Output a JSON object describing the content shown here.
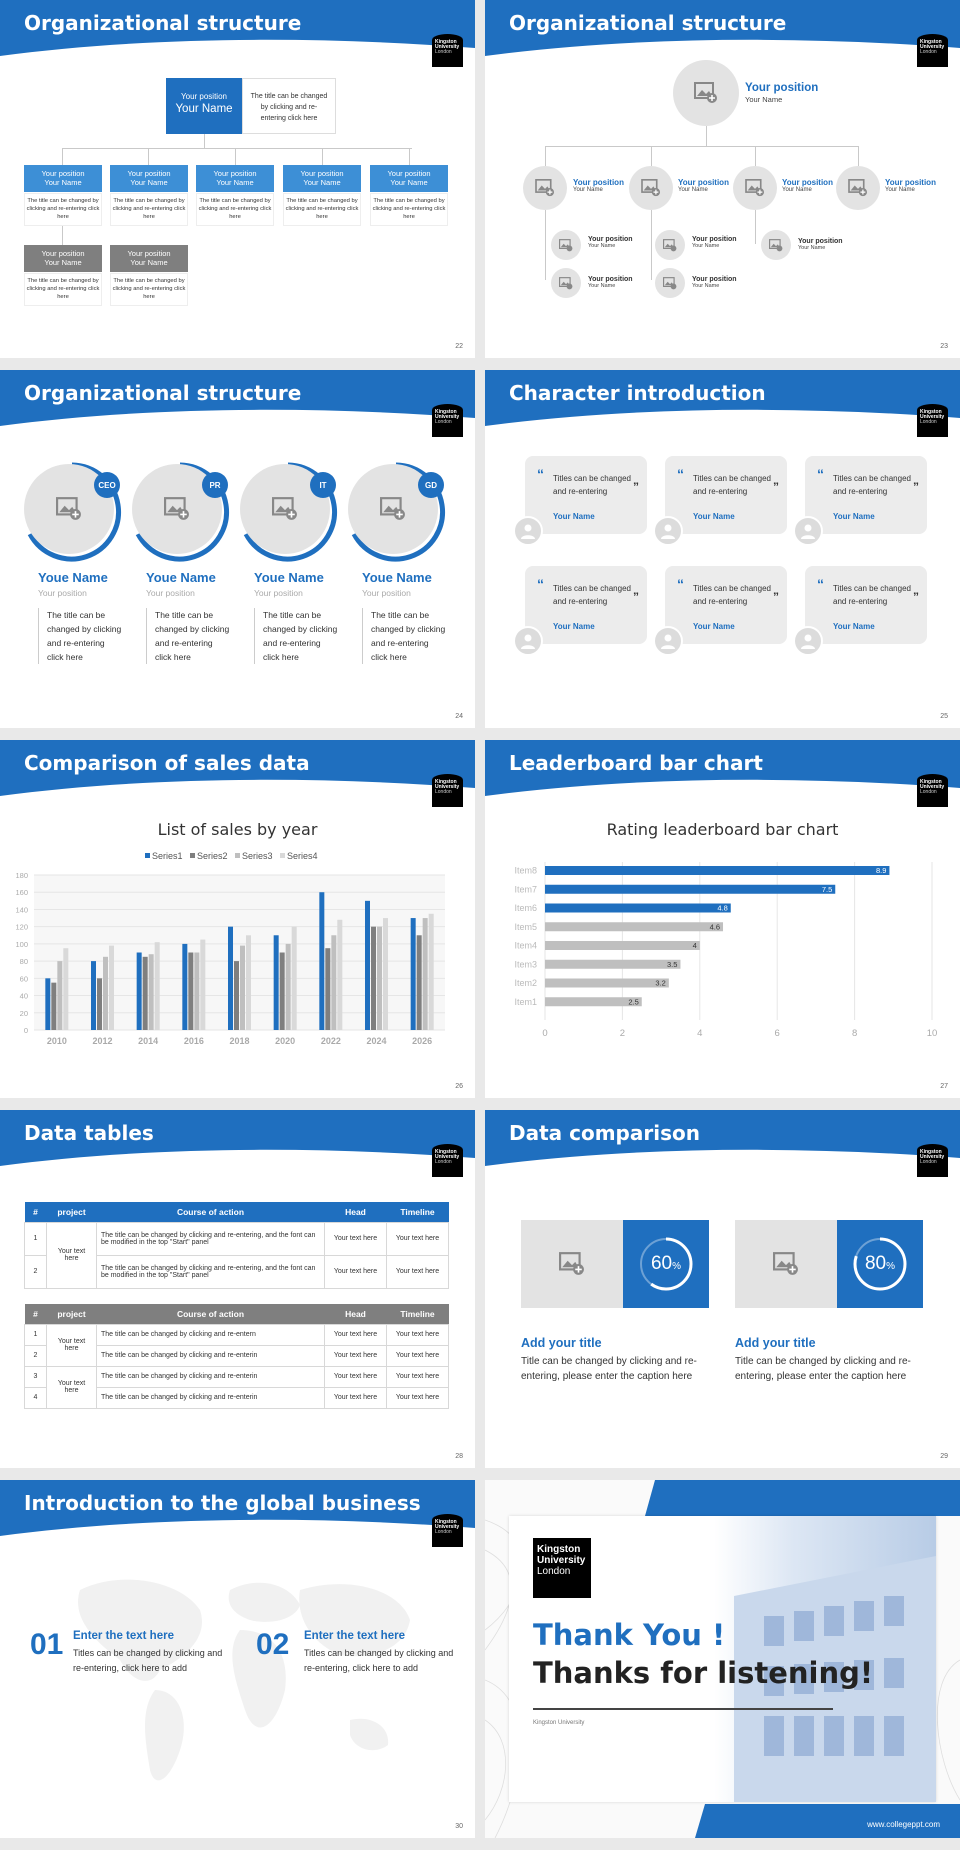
{
  "colors": {
    "blue": "#1f6fbf",
    "light_blue": "#3d8fd6",
    "grey": "#7f7f7f"
  },
  "logo": {
    "line1": "Kingston",
    "line2": "University",
    "line3": "London"
  },
  "slide1": {
    "title": "Organizational structure",
    "page": "22",
    "top": {
      "position": "Your position",
      "name": "Your Name",
      "desc": "The title can be changed by clicking and re-entering click here"
    },
    "boxes": [
      {
        "position": "Your position",
        "name": "Your Name",
        "desc": "The title can be changed by clicking and re-entering click here"
      },
      {
        "position": "Your position",
        "name": "Your Name",
        "desc": "The title can be changed by clicking and re-entering click here"
      },
      {
        "position": "Your position",
        "name": "Your Name",
        "desc": "The title can be changed by clicking and re-entering click here"
      },
      {
        "position": "Your position",
        "name": "Your Name",
        "desc": "The title can be changed by clicking and re-entering click here"
      },
      {
        "position": "Your position",
        "name": "Your Name",
        "desc": "The title can be changed by clicking and re-entering click here"
      },
      {
        "position": "Your position",
        "name": "Your Name",
        "desc": "The title can be changed by clicking and re-entering click here"
      },
      {
        "position": "Your position",
        "name": "Your Name",
        "desc": "The title can be changed by clicking and re-entering click here"
      }
    ]
  },
  "slide2": {
    "title": "Organizational structure",
    "page": "23",
    "top": {
      "position": "Your position",
      "name": "Your Name"
    },
    "mid": [
      {
        "position": "Your position",
        "name": "Your Name"
      },
      {
        "position": "Your position",
        "name": "Your Name"
      },
      {
        "position": "Your position",
        "name": "Your Name"
      },
      {
        "position": "Your position",
        "name": "Your Name"
      }
    ],
    "sub": [
      {
        "position": "Your position",
        "name": "Your Name"
      },
      {
        "position": "Your position",
        "name": "Your Name"
      },
      {
        "position": "Your position",
        "name": "Your Name"
      },
      {
        "position": "Your position",
        "name": "Your Name"
      },
      {
        "position": "Your position",
        "name": "Your Name"
      }
    ]
  },
  "slide3": {
    "title": "Organizational structure",
    "page": "24",
    "people": [
      {
        "badge": "CEO",
        "name": "Youe Name",
        "position": "Your position",
        "desc": "The title can be changed by clicking and re-entering click here"
      },
      {
        "badge": "PR",
        "name": "Youe Name",
        "position": "Your position",
        "desc": "The title can be changed by clicking and re-entering click here"
      },
      {
        "badge": "IT",
        "name": "Youe Name",
        "position": "Your position",
        "desc": "The title can be changed by clicking and re-entering click here"
      },
      {
        "badge": "GD",
        "name": "Youe Name",
        "position": "Your position",
        "desc": "The title can be changed by clicking and re-entering click here"
      }
    ]
  },
  "slide4": {
    "title": "Character introduction",
    "page": "25",
    "cards": [
      {
        "quote": "Titles can be changed and re-entering",
        "name": "Your Name"
      },
      {
        "quote": "Titles can be changed and re-entering",
        "name": "Your Name"
      },
      {
        "quote": "Titles can be changed and re-entering",
        "name": "Your Name"
      },
      {
        "quote": "Titles can be changed and re-entering",
        "name": "Your Name"
      },
      {
        "quote": "Titles can be changed and re-entering",
        "name": "Your Name"
      },
      {
        "quote": "Titles can be changed and re-entering",
        "name": "Your Name"
      }
    ]
  },
  "slide5": {
    "title": "Comparison of sales data",
    "page": "26"
  },
  "slide6": {
    "title": "Leaderboard bar chart",
    "page": "27"
  },
  "chart_data": [
    {
      "type": "bar",
      "title": "List of sales by year",
      "categories": [
        "2010",
        "2012",
        "2014",
        "2016",
        "2018",
        "2020",
        "2022",
        "2024",
        "2026"
      ],
      "series": [
        {
          "name": "Series1",
          "values": [
            60,
            80,
            90,
            100,
            120,
            110,
            160,
            150,
            130
          ]
        },
        {
          "name": "Series2",
          "values": [
            55,
            60,
            85,
            90,
            80,
            90,
            95,
            120,
            110
          ]
        },
        {
          "name": "Series3",
          "values": [
            80,
            85,
            88,
            90,
            98,
            100,
            110,
            120,
            130
          ]
        },
        {
          "name": "Series4",
          "values": [
            95,
            98,
            102,
            105,
            110,
            120,
            128,
            130,
            135
          ]
        }
      ],
      "ylim": [
        0,
        180
      ],
      "yticks": [
        0,
        20,
        40,
        60,
        80,
        100,
        120,
        140,
        160,
        180
      ],
      "legend": "top",
      "grid": true
    },
    {
      "type": "bar",
      "orientation": "horizontal",
      "title": "Rating leaderboard bar chart",
      "categories": [
        "Item8",
        "Item7",
        "Item6",
        "Item5",
        "Item4",
        "Item3",
        "Item2",
        "Item1"
      ],
      "values": [
        8.9,
        7.5,
        4.8,
        4.6,
        4,
        3.5,
        3.2,
        2.5
      ],
      "xlim": [
        0,
        10
      ],
      "xticks": [
        0,
        2,
        4,
        6,
        8,
        10
      ],
      "grid": true
    }
  ],
  "slide7": {
    "title": "Data tables",
    "page": "28",
    "headers": [
      "#",
      "project",
      "Course of action",
      "Head",
      "Timeline"
    ],
    "t1": {
      "project": "Your text here",
      "rows": [
        {
          "n": "1",
          "action": "The title can be changed by clicking and re-entering, and the font can be modified in the top \"Start\" panel",
          "head": "Your text here",
          "time": "Your text here"
        },
        {
          "n": "2",
          "action": "The title can be changed by clicking and re-entering, and the font can be modified in the top \"Start\" panel",
          "head": "Your text here",
          "time": "Your text here"
        }
      ]
    },
    "t2": {
      "project": "Your text here",
      "rows": [
        {
          "n": "1",
          "action": "The title can be changed by clicking and re-entern",
          "head": "Your text here",
          "time": "Your text here"
        },
        {
          "n": "2",
          "action": "The title can be changed by clicking and re-enterin",
          "head": "Your text here",
          "time": "Your text here"
        },
        {
          "n": "3",
          "action": "The title can be changed by clicking and re-enterin",
          "head": "Your text here",
          "time": "Your text here"
        },
        {
          "n": "4",
          "action": "The title can be changed by clicking and re-enterin",
          "head": "Your text here",
          "time": "Your text here"
        }
      ]
    }
  },
  "slide8": {
    "title": "Data comparison",
    "page": "29",
    "items": [
      {
        "percent": 60,
        "value": "60",
        "unit": "%",
        "heading": "Add your title",
        "text": "Title can be changed by clicking and re-entering, please enter the caption here"
      },
      {
        "percent": 80,
        "value": "80",
        "unit": "%",
        "heading": "Add your title",
        "text": "Title can be changed by clicking and re-entering, please enter the caption here"
      }
    ]
  },
  "slide9": {
    "title": "Introduction to the global business",
    "page": "30",
    "items": [
      {
        "num": "01",
        "heading": "Enter the text here",
        "text": "Titles can be changed by clicking and re-entering, click here to add"
      },
      {
        "num": "02",
        "heading": "Enter the text here",
        "text": "Titles can be changed by clicking and re-entering, click here to add"
      }
    ]
  },
  "slide10": {
    "thanks": "Thank You !",
    "listening": "Thanks for listening!",
    "sub": "Kingston University",
    "website": "www.collegeppt.com"
  }
}
